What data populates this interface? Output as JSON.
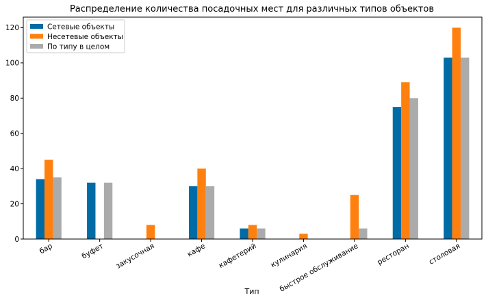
{
  "chart_data": {
    "type": "bar",
    "title": "Распределение количества посадочных мест для различных типов объектов",
    "xlabel": "Тип",
    "ylabel": "",
    "categories": [
      "бар",
      "буфет",
      "закусочная",
      "кафе",
      "кафетерий",
      "кулинария",
      "быстрое обслуживание",
      "ресторан",
      "столовая"
    ],
    "series": [
      {
        "name": "Сетевые объекты",
        "color": "#006ba4",
        "values": [
          34,
          32,
          0,
          30,
          6,
          0,
          0,
          75,
          103
        ]
      },
      {
        "name": "Несетевые объекты",
        "color": "#ff800e",
        "values": [
          45,
          0,
          8,
          40,
          8,
          3,
          25,
          89,
          120
        ]
      },
      {
        "name": "По типу в целом",
        "color": "#ababab",
        "values": [
          35,
          32,
          0,
          30,
          6,
          0,
          6,
          80,
          103
        ]
      }
    ],
    "ylim": [
      0,
      126
    ],
    "yticks": [
      0,
      20,
      40,
      60,
      80,
      100,
      120
    ],
    "grid": false,
    "legend_position": "top-left",
    "xtick_rotation": 30
  }
}
